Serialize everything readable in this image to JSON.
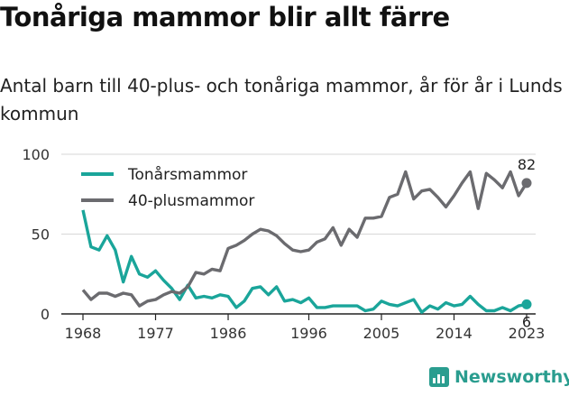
{
  "title": "Tonåriga mammor blir allt färre",
  "subtitle": "Antal barn till 40-plus- och tonåriga mammor, år för år i Lunds kommun",
  "brand": "Newsworthy",
  "colors": {
    "teal": "#1aa59a",
    "gray": "#6b6b6f",
    "axis": "#222222",
    "grid": "#d7d7d7",
    "brand": "#2a9d8f"
  },
  "chart_data": {
    "type": "line",
    "x": [
      1968,
      1969,
      1970,
      1971,
      1972,
      1973,
      1974,
      1975,
      1976,
      1977,
      1978,
      1979,
      1980,
      1981,
      1982,
      1983,
      1984,
      1985,
      1986,
      1987,
      1988,
      1989,
      1990,
      1991,
      1992,
      1993,
      1994,
      1995,
      1996,
      1997,
      1998,
      1999,
      2000,
      2001,
      2002,
      2003,
      2004,
      2005,
      2006,
      2007,
      2008,
      2009,
      2010,
      2011,
      2012,
      2013,
      2014,
      2015,
      2016,
      2017,
      2018,
      2019,
      2020,
      2021,
      2022,
      2023
    ],
    "series": [
      {
        "name": "Tonårsmammor",
        "color": "#1aa59a",
        "values": [
          65,
          42,
          40,
          49,
          40,
          20,
          36,
          25,
          23,
          27,
          21,
          16,
          9,
          18,
          10,
          11,
          10,
          12,
          11,
          4,
          8,
          16,
          17,
          12,
          17,
          8,
          9,
          7,
          10,
          4,
          4,
          5,
          5,
          5,
          5,
          2,
          3,
          8,
          6,
          5,
          7,
          9,
          1,
          5,
          3,
          7,
          5,
          6,
          11,
          6,
          2,
          2,
          4,
          2,
          5,
          6
        ]
      },
      {
        "name": "40-plusmammor",
        "color": "#6b6b6f",
        "values": [
          15,
          9,
          13,
          13,
          11,
          13,
          12,
          5,
          8,
          9,
          12,
          14,
          13,
          17,
          26,
          25,
          28,
          27,
          41,
          43,
          46,
          50,
          53,
          52,
          49,
          44,
          40,
          39,
          40,
          45,
          47,
          54,
          43,
          53,
          48,
          60,
          60,
          61,
          73,
          75,
          89,
          72,
          77,
          78,
          73,
          67,
          74,
          82,
          89,
          66,
          88,
          84,
          79,
          89,
          74,
          82
        ]
      }
    ],
    "xticks": [
      1968,
      1977,
      1986,
      1996,
      2005,
      2014,
      2023
    ],
    "yticks": [
      0,
      50,
      100
    ],
    "xlim": [
      1968,
      2023
    ],
    "ylim": [
      0,
      100
    ],
    "end_labels": {
      "40-plusmammor": "82",
      "Tonårsmammor": "6"
    },
    "grid": "horizontal",
    "legend": "top-left"
  }
}
